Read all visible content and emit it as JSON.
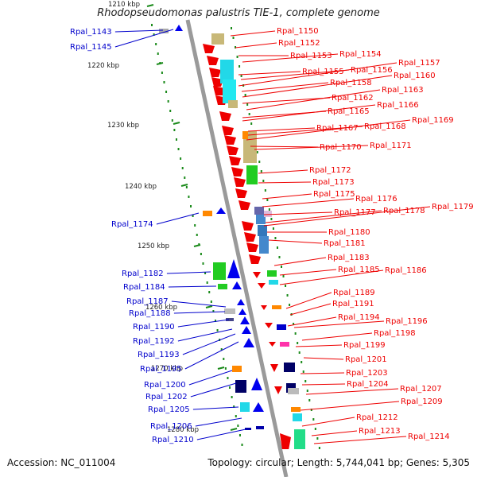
{
  "title": "Rhodopseudomonas palustris TIE-1, complete genome",
  "footer": {
    "accession": "Accession: NC_011004",
    "topology": "Topology: circular; Length: 5,744,041 bp; Genes: 5,305"
  },
  "ruler_labels": [
    "1210 kbp",
    "1220 kbp",
    "1230 kbp",
    "1240 kbp",
    "1250 kbp",
    "1260 kbp",
    "1270 kbp",
    "1280 kbp"
  ],
  "left_genes": [
    "Rpal_1143",
    "Rpal_1145",
    "Rpal_1174",
    "Rpal_1182",
    "Rpal_1184",
    "Rpal_1187",
    "Rpal_1188",
    "Rpal_1190",
    "Rpal_1192",
    "Rpal_1193",
    "Rpal_1195",
    "Rpal_1200",
    "Rpal_1202",
    "Rpal_1205",
    "Rpal_1206",
    "Rpal_1210"
  ],
  "right_genes": [
    "Rpal_1150",
    "Rpal_1152",
    "Rpal_1153",
    "Rpal_1154",
    "Rpal_1155",
    "Rpal_1156",
    "Rpal_1157",
    "Rpal_1158",
    "Rpal_1160",
    "Rpal_1162",
    "Rpal_1163",
    "Rpal_1165",
    "Rpal_1166",
    "Rpal_1167",
    "Rpal_1168",
    "Rpal_1169",
    "Rpal_1170",
    "Rpal_1171",
    "Rpal_1172",
    "Rpal_1173",
    "Rpal_1175",
    "Rpal_1176",
    "Rpal_1177",
    "Rpal_1178",
    "Rpal_1179",
    "Rpal_1180",
    "Rpal_1181",
    "Rpal_1183",
    "Rpal_1185",
    "Rpal_1186",
    "Rpal_1189",
    "Rpal_1191",
    "Rpal_1194",
    "Rpal_1196",
    "Rpal_1198",
    "Rpal_1199",
    "Rpal_1201",
    "Rpal_1203",
    "Rpal_1204",
    "Rpal_1207",
    "Rpal_1209",
    "Rpal_1212",
    "Rpal_1213",
    "Rpal_1214"
  ],
  "colors": {
    "left_label": "#0000cc",
    "right_label": "#ee0000",
    "axis": "#999999",
    "ruler": "#1a8a1a"
  }
}
